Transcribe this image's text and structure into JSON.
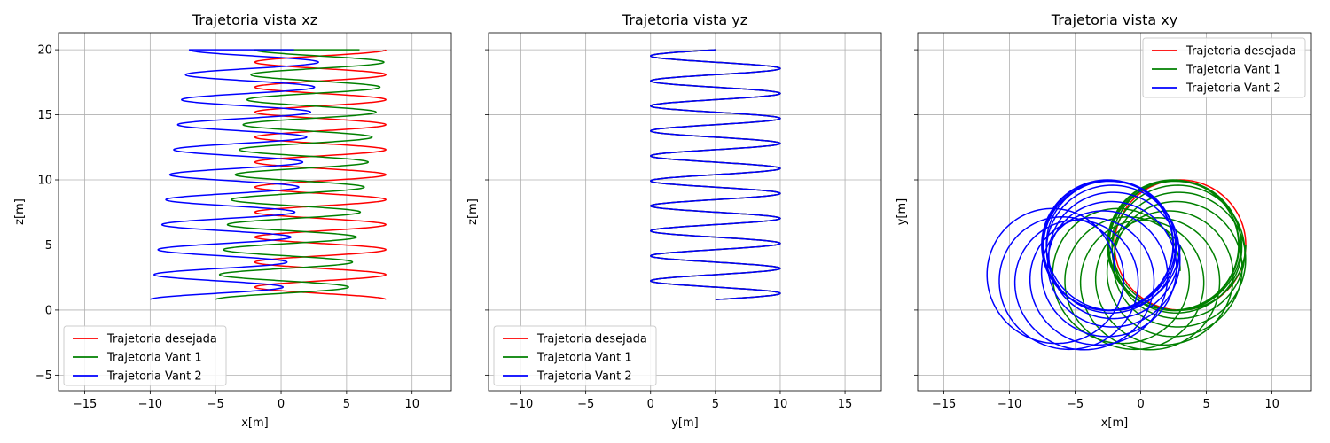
{
  "chart_data": [
    {
      "type": "line",
      "view": "xz",
      "title": "Trajetoria vista xz",
      "xlabel": "x[m]",
      "ylabel": "z[m]",
      "xlim": [
        -17,
        13
      ],
      "ylim": [
        -6.2,
        21.3
      ],
      "xticks": [
        -15,
        -10,
        -5,
        0,
        5,
        10
      ],
      "yticks": [
        -5,
        0,
        5,
        10,
        15,
        20
      ],
      "grid": true,
      "legend": "lower-left",
      "series": [
        {
          "name": "Trajetoria desejada",
          "color": "#ff0000",
          "param": "x-z",
          "xcenter": 3,
          "xamp": 5,
          "xphase": 0,
          "ycenter": 5,
          "yamp": 5,
          "yphase": -1.5708,
          "zstart": 0.8,
          "zend": 20,
          "turns": 10,
          "hold_turns": 0
        },
        {
          "name": "Trajetoria Vant 1",
          "color": "#008000",
          "param": "x-z",
          "xcenter": 3,
          "xamp": 5,
          "xphase": 3.1416,
          "xdrift": 3,
          "zstart": 0.8,
          "zend": 20,
          "turns": 10,
          "hold_turns": 1.2
        },
        {
          "name": "Trajetoria Vant 2",
          "color": "#0000ff",
          "param": "x-z",
          "xcenter": -2,
          "xamp": 5,
          "xphase": 3.1416,
          "xdrift": 3,
          "zstart": 0.8,
          "zend": 20,
          "turns": 10,
          "hold_turns": 1.2
        }
      ]
    },
    {
      "type": "line",
      "view": "yz",
      "title": "Trajetoria vista yz",
      "xlabel": "y[m]",
      "ylabel": "z[m]",
      "xlim": [
        -12.5,
        17.8
      ],
      "ylim": [
        -6.2,
        21.3
      ],
      "xticks": [
        -10,
        -5,
        0,
        5,
        10,
        15
      ],
      "yticks": [
        -5,
        0,
        5,
        10,
        15,
        20
      ],
      "grid": true,
      "legend": "lower-left",
      "series": [
        {
          "name": "Trajetoria desejada",
          "color": "#ff0000",
          "param": "y-z",
          "ycenter": 5,
          "yamp": 5,
          "zstart": 0.8,
          "zend": 20,
          "turns": 10
        },
        {
          "name": "Trajetoria Vant 1",
          "color": "#008000",
          "param": "y-z",
          "ycenter": 5,
          "yamp": 5,
          "zstart": 0.8,
          "zend": 20,
          "turns": 10
        },
        {
          "name": "Trajetoria Vant 2",
          "color": "#0000ff",
          "param": "y-z",
          "ycenter": 5,
          "yamp": 5,
          "zstart": 0.8,
          "zend": 20,
          "turns": 10
        }
      ]
    },
    {
      "type": "line",
      "view": "xy",
      "title": "Trajetoria vista xy",
      "xlabel": "x[m]",
      "ylabel": "y[m]",
      "xlim": [
        -17,
        13
      ],
      "ylim": [
        -6.2,
        21.3
      ],
      "xticks": [
        -15,
        -10,
        -5,
        0,
        5,
        10
      ],
      "yticks": [
        -5,
        0,
        5,
        10,
        15,
        20
      ],
      "grid": true,
      "legend": "upper-right",
      "series": [
        {
          "name": "Trajetoria desejada",
          "color": "#ff0000",
          "param": "x-y",
          "xcenter": 3,
          "ycenter": 5,
          "radius": 5,
          "drift": 0
        },
        {
          "name": "Trajetoria Vant 1",
          "color": "#008000",
          "param": "x-y",
          "xcenter": 3,
          "ycenter": 5,
          "radius": 5,
          "drift": 1
        },
        {
          "name": "Trajetoria Vant 2",
          "color": "#0000ff",
          "param": "x-y",
          "xcenter": -2,
          "ycenter": 5,
          "radius": 5,
          "drift": 1
        }
      ]
    }
  ]
}
